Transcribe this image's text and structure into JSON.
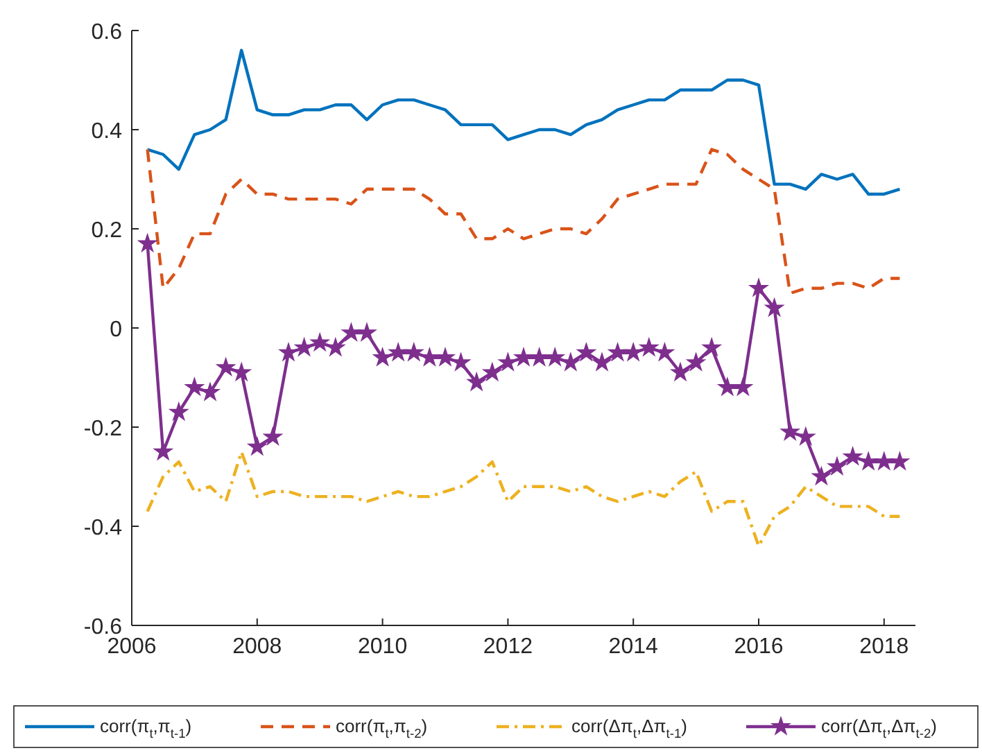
{
  "chart_data": {
    "type": "line",
    "x": [
      2006.25,
      2006.5,
      2006.75,
      2007,
      2007.25,
      2007.5,
      2007.75,
      2008,
      2008.25,
      2008.5,
      2008.75,
      2009,
      2009.25,
      2009.5,
      2009.75,
      2010,
      2010.25,
      2010.5,
      2010.75,
      2011,
      2011.25,
      2011.5,
      2011.75,
      2012,
      2012.25,
      2012.5,
      2012.75,
      2013,
      2013.25,
      2013.5,
      2013.75,
      2014,
      2014.25,
      2014.5,
      2014.75,
      2015,
      2015.25,
      2015.5,
      2015.75,
      2016,
      2016.25,
      2016.5,
      2016.75,
      2017,
      2017.25,
      2017.5,
      2017.75,
      2018,
      2018.25
    ],
    "series": [
      {
        "name": "corr(π$_{t}$,π$_{t-1}$)",
        "color": "#0072bd",
        "line_style": "solid",
        "marker": "none",
        "values": [
          0.36,
          0.35,
          0.32,
          0.39,
          0.4,
          0.42,
          0.56,
          0.44,
          0.43,
          0.43,
          0.44,
          0.44,
          0.45,
          0.45,
          0.42,
          0.45,
          0.46,
          0.46,
          0.45,
          0.44,
          0.41,
          0.41,
          0.41,
          0.38,
          0.39,
          0.4,
          0.4,
          0.39,
          0.41,
          0.42,
          0.44,
          0.45,
          0.46,
          0.46,
          0.48,
          0.48,
          0.48,
          0.5,
          0.5,
          0.49,
          0.29,
          0.29,
          0.28,
          0.31,
          0.3,
          0.31,
          0.27,
          0.27,
          0.28
        ]
      },
      {
        "name": "corr(π$_{t}$,π$_{t-2}$)",
        "color": "#d95319",
        "line_style": "dashed",
        "marker": "none",
        "values": [
          0.36,
          0.08,
          0.12,
          0.19,
          0.19,
          0.27,
          0.3,
          0.27,
          0.27,
          0.26,
          0.26,
          0.26,
          0.26,
          0.25,
          0.28,
          0.28,
          0.28,
          0.28,
          0.26,
          0.23,
          0.23,
          0.18,
          0.18,
          0.2,
          0.18,
          0.19,
          0.2,
          0.2,
          0.19,
          0.22,
          0.26,
          0.27,
          0.28,
          0.29,
          0.29,
          0.29,
          0.36,
          0.35,
          0.32,
          0.3,
          0.28,
          0.07,
          0.08,
          0.08,
          0.09,
          0.09,
          0.08,
          0.1,
          0.1
        ]
      },
      {
        "name": "corr(Δπ$_{t}$,Δπ$_{t-1}$)",
        "color": "#edb120",
        "line_style": "dashdot",
        "marker": "none",
        "values": [
          -0.37,
          -0.3,
          -0.27,
          -0.33,
          -0.32,
          -0.35,
          -0.25,
          -0.34,
          -0.33,
          -0.33,
          -0.34,
          -0.34,
          -0.34,
          -0.34,
          -0.35,
          -0.34,
          -0.33,
          -0.34,
          -0.34,
          -0.33,
          -0.32,
          -0.3,
          -0.27,
          -0.35,
          -0.32,
          -0.32,
          -0.32,
          -0.33,
          -0.32,
          -0.34,
          -0.35,
          -0.34,
          -0.33,
          -0.34,
          -0.31,
          -0.29,
          -0.37,
          -0.35,
          -0.35,
          -0.44,
          -0.38,
          -0.36,
          -0.32,
          -0.34,
          -0.36,
          -0.36,
          -0.36,
          -0.38,
          -0.38
        ]
      },
      {
        "name": "corr(Δπ$_{t}$,Δπ$_{t-2}$)",
        "color": "#7e2f8e",
        "line_style": "solid",
        "marker": "star",
        "values": [
          0.17,
          -0.25,
          -0.17,
          -0.12,
          -0.13,
          -0.08,
          -0.09,
          -0.24,
          -0.22,
          -0.05,
          -0.04,
          -0.03,
          -0.04,
          -0.01,
          -0.01,
          -0.06,
          -0.05,
          -0.05,
          -0.06,
          -0.06,
          -0.07,
          -0.11,
          -0.09,
          -0.07,
          -0.06,
          -0.06,
          -0.06,
          -0.07,
          -0.05,
          -0.07,
          -0.05,
          -0.05,
          -0.04,
          -0.05,
          -0.09,
          -0.07,
          -0.04,
          -0.12,
          -0.12,
          0.08,
          0.04,
          -0.21,
          -0.22,
          -0.3,
          -0.28,
          -0.26,
          -0.27,
          -0.27,
          -0.27
        ]
      }
    ],
    "xlim": [
      2006,
      2018.5
    ],
    "xticks": [
      2006,
      2008,
      2010,
      2012,
      2014,
      2016,
      2018
    ],
    "ylim": [
      -0.6,
      0.6
    ],
    "yticks": [
      {
        "value": -0.6,
        "label": "-0.6"
      },
      {
        "value": -0.4,
        "label": "-0.4"
      },
      {
        "value": -0.2,
        "label": "-0.2"
      },
      0,
      {
        "value": 0.2,
        "label": "0.2"
      },
      {
        "value": 0.4,
        "label": "0.4"
      },
      {
        "value": 0.6,
        "label": "0.6"
      }
    ],
    "grid": false,
    "legend": "bottom"
  }
}
